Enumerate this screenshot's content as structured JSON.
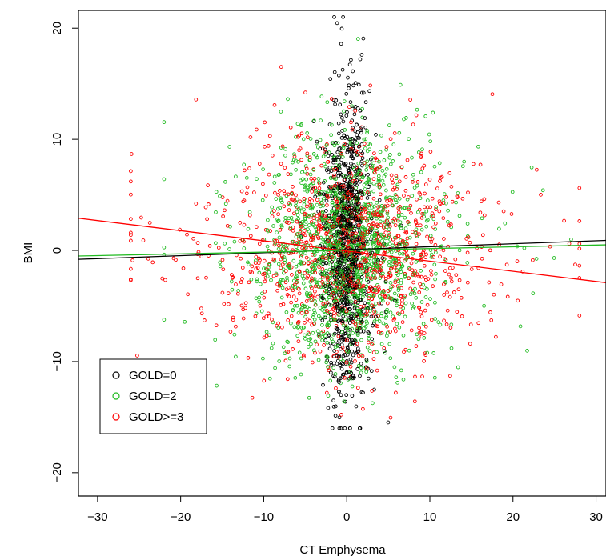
{
  "chart_data": {
    "type": "scatter",
    "title": "",
    "xlabel": "CT Emphysema",
    "ylabel": "BMI",
    "xlim": [
      -32.3,
      31.2
    ],
    "ylim": [
      -22.1,
      21.6
    ],
    "xticks": [
      -30,
      -20,
      -10,
      0,
      10,
      20,
      30
    ],
    "yticks": [
      -20,
      -10,
      0,
      10,
      20
    ],
    "xtick_labels": [
      "−30",
      "−20",
      "−10",
      "0",
      "10",
      "20",
      "30"
    ],
    "ytick_labels": [
      "−20",
      "−10",
      "0",
      "10",
      "20"
    ],
    "grid": false,
    "legend_position": "bottom-left",
    "point_style": "open-circle",
    "series": [
      {
        "name": "GOLD=0",
        "color": "#000000",
        "approx_points": 900,
        "distribution": {
          "x_center": 0.0,
          "x_spread": 1.2,
          "y_center": 0.5,
          "y_spread": 6.5,
          "x_range": [
            -10,
            20
          ],
          "y_range": [
            -16,
            21
          ]
        },
        "fit_line": {
          "x": [
            -32.3,
            31.2
          ],
          "y": [
            -0.8,
            0.9
          ]
        }
      },
      {
        "name": "GOLD=2",
        "color": "#22bb22",
        "approx_points": 1500,
        "distribution": {
          "x_center": 0.0,
          "x_spread": 4.5,
          "y_center": 0.0,
          "y_spread": 5.0,
          "x_range": [
            -22,
            27
          ],
          "y_range": [
            -15,
            20
          ]
        },
        "fit_line": {
          "x": [
            -32.3,
            31.2
          ],
          "y": [
            -0.5,
            0.5
          ]
        }
      },
      {
        "name": "GOLD>=3",
        "color": "#ff0000",
        "approx_points": 1100,
        "distribution": {
          "x_center": 0.0,
          "x_spread": 7.0,
          "y_center": 0.0,
          "y_spread": 5.0,
          "x_range": [
            -26,
            28
          ],
          "y_range": [
            -18,
            19
          ]
        },
        "fit_line": {
          "x": [
            -32.3,
            31.2
          ],
          "y": [
            2.9,
            -2.9
          ]
        }
      }
    ]
  }
}
